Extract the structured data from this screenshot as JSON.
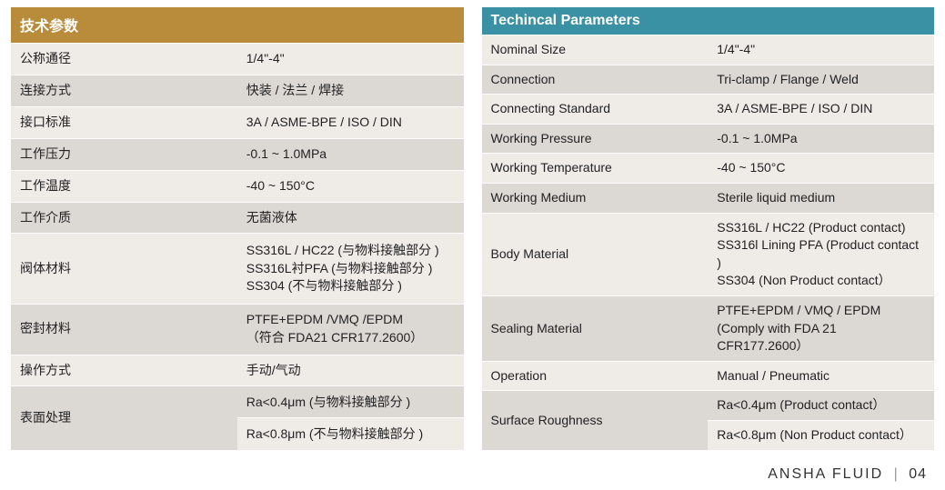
{
  "colors": {
    "row_a": "#efece8",
    "row_b": "#dcd9d4",
    "header_left_bg": "#b88c3a",
    "header_right_bg": "#3a91a3",
    "header_fg": "#ffffff",
    "text": "#222222",
    "footer_text": "#333333",
    "footer_sep": "#999999"
  },
  "left": {
    "title": "技术参数",
    "label_width_pct": 22,
    "rows": [
      {
        "label": "公称通径",
        "value": "1/4\"-4\""
      },
      {
        "label": "连接方式",
        "value": "快装 / 法兰 / 焊接"
      },
      {
        "label": "接口标准",
        "value": "3A / ASME-BPE / ISO / DIN"
      },
      {
        "label": "工作压力",
        "value": "-0.1 ~ 1.0MPa"
      },
      {
        "label": "工作温度",
        "value": "-40 ~ 150°C"
      },
      {
        "label": "工作介质",
        "value": "无菌液体"
      },
      {
        "label": "阀体材料",
        "value": "SS316L / HC22 (与物料接触部分 )\nSS316L衬PFA (与物料接触部分 )\nSS304 (不与物料接触部分 )"
      },
      {
        "label": "密封材料",
        "value": "PTFE+EPDM /VMQ /EPDM\n（符合 FDA21 CFR177.2600）"
      },
      {
        "label": "操作方式",
        "value": "手动/气动"
      },
      {
        "label": "表面处理",
        "value": "Ra<0.4μm (与物料接触部分 )",
        "rowspan_label": 2
      },
      {
        "label": "",
        "value": "Ra<0.8μm (不与物料接触部分 )",
        "skip_label": true
      }
    ]
  },
  "right": {
    "title": "Techincal Parameters",
    "label_width_pct": 36,
    "rows": [
      {
        "label": "Nominal Size",
        "value": "1/4\"-4\""
      },
      {
        "label": "Connection",
        "value": "Tri-clamp / Flange / Weld"
      },
      {
        "label": "Connecting Standard",
        "value": "3A / ASME-BPE / ISO / DIN"
      },
      {
        "label": "Working Pressure",
        "value": "-0.1 ~ 1.0MPa"
      },
      {
        "label": "Working Temperature",
        "value": "-40 ~ 150°C"
      },
      {
        "label": "Working Medium",
        "value": "Sterile liquid medium"
      },
      {
        "label": "Body Material",
        "value": "SS316L / HC22 (Product contact)\nSS316l Lining PFA (Product contact )\nSS304  (Non Product contact）"
      },
      {
        "label": "Sealing Material",
        "value": "PTFE+EPDM / VMQ / EPDM\n(Comply with FDA 21 CFR177.2600）"
      },
      {
        "label": "Operation",
        "value": "Manual / Pneumatic"
      },
      {
        "label": "Surface Roughness",
        "value": "Ra<0.4μm (Product contact）",
        "rowspan_label": 2
      },
      {
        "label": "",
        "value": "Ra<0.8μm (Non Product contact）",
        "skip_label": true
      }
    ]
  },
  "footer": {
    "brand": "ANSHA FLUID",
    "page": "04"
  }
}
